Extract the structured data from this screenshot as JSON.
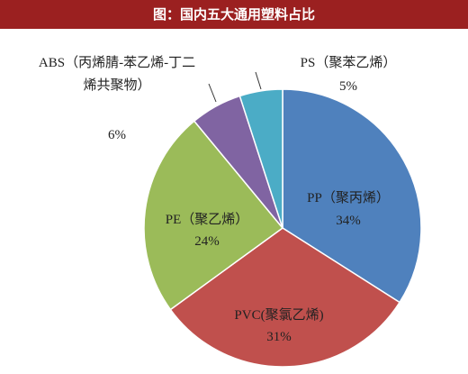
{
  "chart_data": {
    "type": "pie",
    "title": "图：国内五大通用塑料占比",
    "categories": [
      "PP（聚丙烯）",
      "PVC(聚氯乙烯)",
      "PE（聚乙烯）",
      "ABS（丙烯腈-苯乙烯-丁二烯共聚物）",
      "PS（聚苯乙烯）"
    ],
    "values": [
      34,
      31,
      24,
      6,
      5
    ],
    "value_labels": [
      "34%",
      "31%",
      "24%",
      "6%",
      "5%"
    ],
    "colors": [
      "#4f81bd",
      "#c0504d",
      "#9bbb59",
      "#8064a2",
      "#4bacc6"
    ]
  }
}
